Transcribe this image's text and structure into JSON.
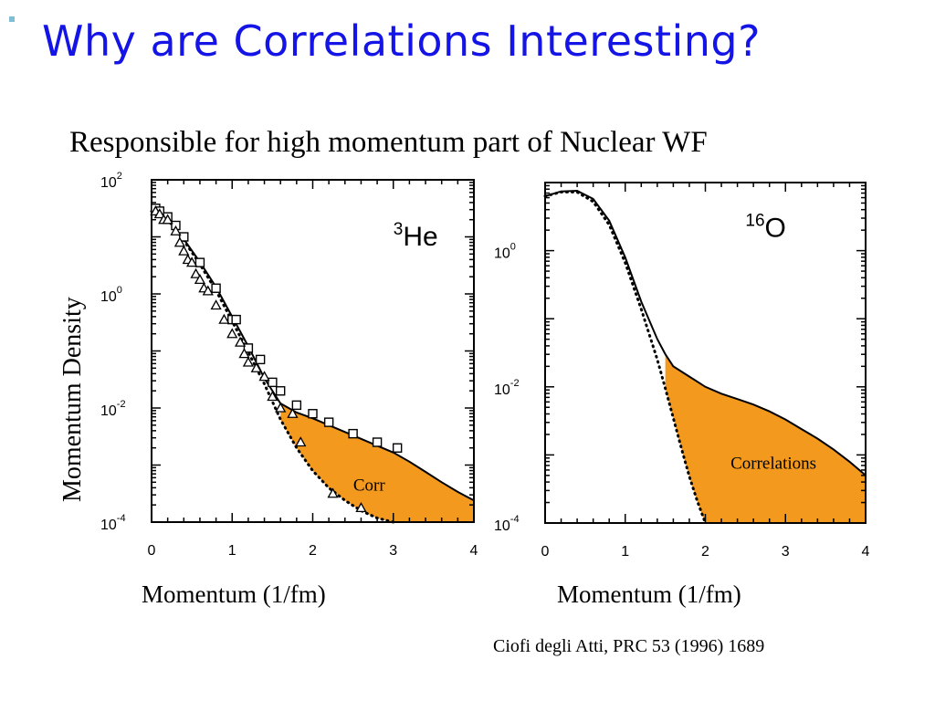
{
  "slide": {
    "title": "Why are Correlations Interesting?",
    "subtitle": "Responsible for high momentum part of Nuclear WF",
    "ylabel": "Momentum Density",
    "citation": "Ciofi degli Atti, PRC 53 (1996) 1689"
  },
  "chart_data": [
    {
      "type": "line",
      "nucleus_mass": "3",
      "nucleus_symbol": "He",
      "xlabel": "Momentum (1/fm)",
      "ylabel": "Momentum Density",
      "xlim": [
        0,
        4
      ],
      "ylim_log10": [
        -4,
        2
      ],
      "yscale": "log",
      "x_ticks": [
        "0",
        "1",
        "2",
        "3",
        "4"
      ],
      "y_ticks": [
        {
          "base": "10",
          "exp": "2"
        },
        {
          "base": "10",
          "exp": "0"
        },
        {
          "base": "10",
          "exp": "-2"
        },
        {
          "base": "10",
          "exp": "-4"
        }
      ],
      "annotation": "Corr",
      "fill_color": "#f2991e",
      "series": [
        {
          "style": "solid",
          "x": [
            0,
            0.2,
            0.4,
            0.6,
            0.8,
            1.0,
            1.2,
            1.4,
            1.6,
            1.8,
            2.0,
            2.2,
            2.4,
            2.6,
            2.8,
            3.0,
            3.2,
            3.4,
            3.6,
            3.8,
            4.0
          ],
          "log10_y": [
            1.45,
            1.3,
            0.96,
            0.56,
            0.12,
            -0.4,
            -0.92,
            -1.48,
            -1.92,
            -2.08,
            -2.18,
            -2.3,
            -2.42,
            -2.54,
            -2.66,
            -2.78,
            -2.94,
            -3.12,
            -3.3,
            -3.47,
            -3.62
          ]
        },
        {
          "style": "dotted",
          "x": [
            0,
            0.2,
            0.4,
            0.6,
            0.8,
            1.0,
            1.2,
            1.4,
            1.6,
            1.8,
            2.0,
            2.2,
            2.4,
            2.6,
            2.8,
            3.0
          ],
          "log10_y": [
            1.45,
            1.3,
            0.94,
            0.52,
            0.06,
            -0.48,
            -1.02,
            -1.58,
            -2.2,
            -2.7,
            -3.1,
            -3.4,
            -3.62,
            -3.8,
            -3.93,
            -4.0
          ]
        },
        {
          "style": "points",
          "marker": "square",
          "x": [
            0.05,
            0.1,
            0.2,
            0.3,
            0.4,
            0.6,
            0.8,
            1.0,
            1.05,
            1.2,
            1.35,
            1.5,
            1.6,
            1.8,
            2.0,
            2.2,
            2.5,
            2.8,
            3.05
          ],
          "log10_y": [
            1.5,
            1.45,
            1.35,
            1.2,
            1.0,
            0.55,
            0.1,
            -0.45,
            -0.45,
            -0.95,
            -1.15,
            -1.55,
            -1.7,
            -1.95,
            -2.1,
            -2.25,
            -2.45,
            -2.6,
            -2.7
          ]
        },
        {
          "style": "points",
          "marker": "triangle",
          "x": [
            0.05,
            0.1,
            0.15,
            0.2,
            0.3,
            0.35,
            0.4,
            0.45,
            0.5,
            0.55,
            0.6,
            0.65,
            0.7,
            0.8,
            0.9,
            1.0,
            1.1,
            1.15,
            1.2,
            1.3,
            1.4,
            1.5,
            1.6,
            1.75,
            1.85,
            2.25,
            2.6
          ],
          "log10_y": [
            1.45,
            1.4,
            1.3,
            1.3,
            1.1,
            0.9,
            0.75,
            0.6,
            0.55,
            0.35,
            0.25,
            0.1,
            0.05,
            -0.2,
            -0.45,
            -0.7,
            -0.85,
            -1.05,
            -1.2,
            -1.3,
            -1.45,
            -1.8,
            -2.0,
            -2.1,
            -2.6,
            -3.5,
            -3.75
          ]
        }
      ]
    },
    {
      "type": "line",
      "nucleus_mass": "16",
      "nucleus_symbol": "O",
      "xlabel": "Momentum (1/fm)",
      "ylabel": "Momentum Density",
      "xlim": [
        0,
        4
      ],
      "ylim_log10": [
        -4,
        1
      ],
      "yscale": "log",
      "x_ticks": [
        "0",
        "1",
        "2",
        "3",
        "4"
      ],
      "y_ticks": [
        {
          "base": "10",
          "exp": "0"
        },
        {
          "base": "10",
          "exp": "-2"
        },
        {
          "base": "10",
          "exp": "-4"
        }
      ],
      "annotation": "Correlations",
      "fill_color": "#f2991e",
      "series": [
        {
          "style": "solid",
          "x": [
            0,
            0.2,
            0.4,
            0.6,
            0.8,
            1.0,
            1.2,
            1.4,
            1.5,
            1.6,
            1.8,
            2.0,
            2.2,
            2.4,
            2.6,
            2.8,
            3.0,
            3.2,
            3.4,
            3.6,
            3.8,
            4.0
          ],
          "log10_y": [
            0.8,
            0.87,
            0.88,
            0.76,
            0.44,
            -0.1,
            -0.75,
            -1.3,
            -1.52,
            -1.7,
            -1.85,
            -2.0,
            -2.1,
            -2.18,
            -2.26,
            -2.36,
            -2.48,
            -2.62,
            -2.76,
            -2.92,
            -3.1,
            -3.3
          ]
        },
        {
          "style": "dotted",
          "x": [
            0,
            0.2,
            0.4,
            0.6,
            0.8,
            1.0,
            1.2,
            1.4,
            1.5,
            1.6,
            1.7,
            1.8,
            1.9,
            2.0
          ],
          "log10_y": [
            0.8,
            0.86,
            0.86,
            0.72,
            0.38,
            -0.18,
            -0.86,
            -1.6,
            -2.02,
            -2.46,
            -2.9,
            -3.32,
            -3.68,
            -4.0
          ]
        }
      ]
    }
  ]
}
